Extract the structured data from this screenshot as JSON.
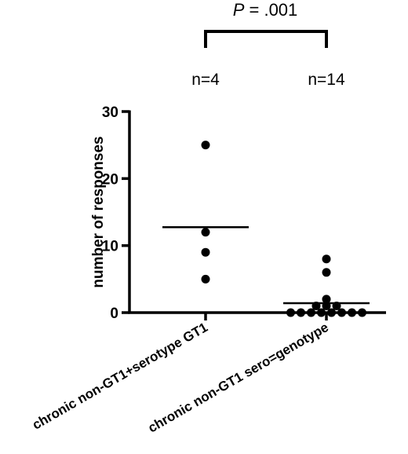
{
  "chart_data": {
    "type": "scatter",
    "ylabel": "number of responses",
    "ylim": [
      0,
      30
    ],
    "yticks": [
      "0",
      "10",
      "20",
      "30"
    ],
    "categories": [
      "chronic non-GT1+serotype GT1",
      "chronic non-GT1 sero=genotype"
    ],
    "sample_sizes": [
      "n=4",
      "n=14"
    ],
    "series": [
      {
        "values": [
          25,
          12,
          9,
          5
        ],
        "mean": 12.75
      },
      {
        "values": [
          8,
          6,
          2,
          1,
          1,
          1,
          0,
          0,
          0,
          0,
          0,
          0,
          0,
          0
        ],
        "mean": 1.4
      }
    ],
    "significance": {
      "p_symbol": "P",
      "p_text": " = .001"
    },
    "grid": false,
    "legend": "none",
    "colors": {
      "points": "#000000",
      "axis": "#000000"
    }
  }
}
